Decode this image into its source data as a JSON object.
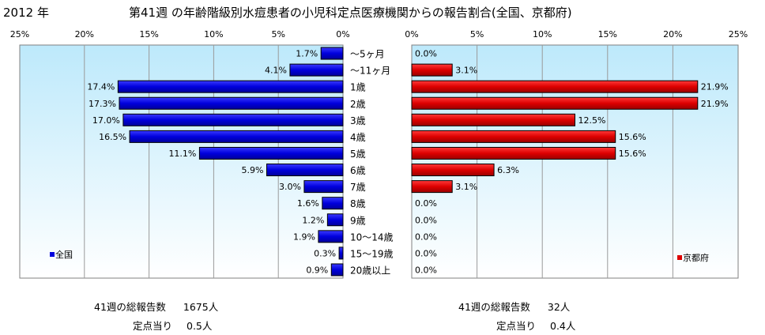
{
  "header": {
    "year": "2012 年",
    "title": "第41週 の年齢階級別水痘患者の小児科定点医療機関からの報告割合(全国、京都府)"
  },
  "colors": {
    "national_bar": "#0000dd",
    "kyoto_bar": "#dd0000",
    "plot_top": "#bde9fb",
    "plot_bottom": "#ffffff"
  },
  "chart_data": [
    {
      "type": "bar",
      "orientation": "horizontal",
      "direction": "right-to-left",
      "legend": "全国",
      "legend_position": "bottom-left",
      "xlim": [
        0,
        25
      ],
      "xticks": [
        "25%",
        "20%",
        "15%",
        "10%",
        "5%",
        "0%"
      ],
      "tick_values": [
        25,
        20,
        15,
        10,
        5,
        0
      ],
      "categories": [
        "～5ヶ月",
        "～11ヶ月",
        "1歳",
        "2歳",
        "3歳",
        "4歳",
        "5歳",
        "6歳",
        "7歳",
        "8歳",
        "9歳",
        "10～14歳",
        "15～19歳",
        "20歳以上"
      ],
      "values": [
        1.7,
        4.1,
        17.4,
        17.3,
        17.0,
        16.5,
        11.1,
        5.9,
        3.0,
        1.6,
        1.2,
        1.9,
        0.3,
        0.9
      ],
      "labels": [
        "1.7%",
        "4.1%",
        "17.4%",
        "17.3%",
        "17.0%",
        "16.5%",
        "11.1%",
        "5.9%",
        "3.0%",
        "1.6%",
        "1.2%",
        "1.9%",
        "0.3%",
        "0.9%"
      ],
      "grid": "vertical"
    },
    {
      "type": "bar",
      "orientation": "horizontal",
      "direction": "left-to-right",
      "legend": "京都府",
      "legend_position": "bottom-right",
      "xlim": [
        0,
        25
      ],
      "xticks": [
        "0%",
        "5%",
        "10%",
        "15%",
        "20%",
        "25%"
      ],
      "tick_values": [
        0,
        5,
        10,
        15,
        20,
        25
      ],
      "categories": [
        "～5ヶ月",
        "～11ヶ月",
        "1歳",
        "2歳",
        "3歳",
        "4歳",
        "5歳",
        "6歳",
        "7歳",
        "8歳",
        "9歳",
        "10～14歳",
        "15～19歳",
        "20歳以上"
      ],
      "values": [
        0.0,
        3.1,
        21.9,
        21.9,
        12.5,
        15.6,
        15.6,
        6.3,
        3.1,
        0.0,
        0.0,
        0.0,
        0.0,
        0.0
      ],
      "labels": [
        "0.0%",
        "3.1%",
        "21.9%",
        "21.9%",
        "12.5%",
        "15.6%",
        "15.6%",
        "6.3%",
        "3.1%",
        "0.0%",
        "0.0%",
        "0.0%",
        "0.0%",
        "0.0%"
      ],
      "grid": "vertical"
    }
  ],
  "stats": {
    "national": {
      "total_label": "41週の総報告数",
      "total_value": "1675人",
      "per_label": "定点当り",
      "per_value": "0.5人"
    },
    "kyoto": {
      "total_label": "41週の総報告数",
      "total_value": "32人",
      "per_label": "定点当り",
      "per_value": "0.4人"
    }
  }
}
